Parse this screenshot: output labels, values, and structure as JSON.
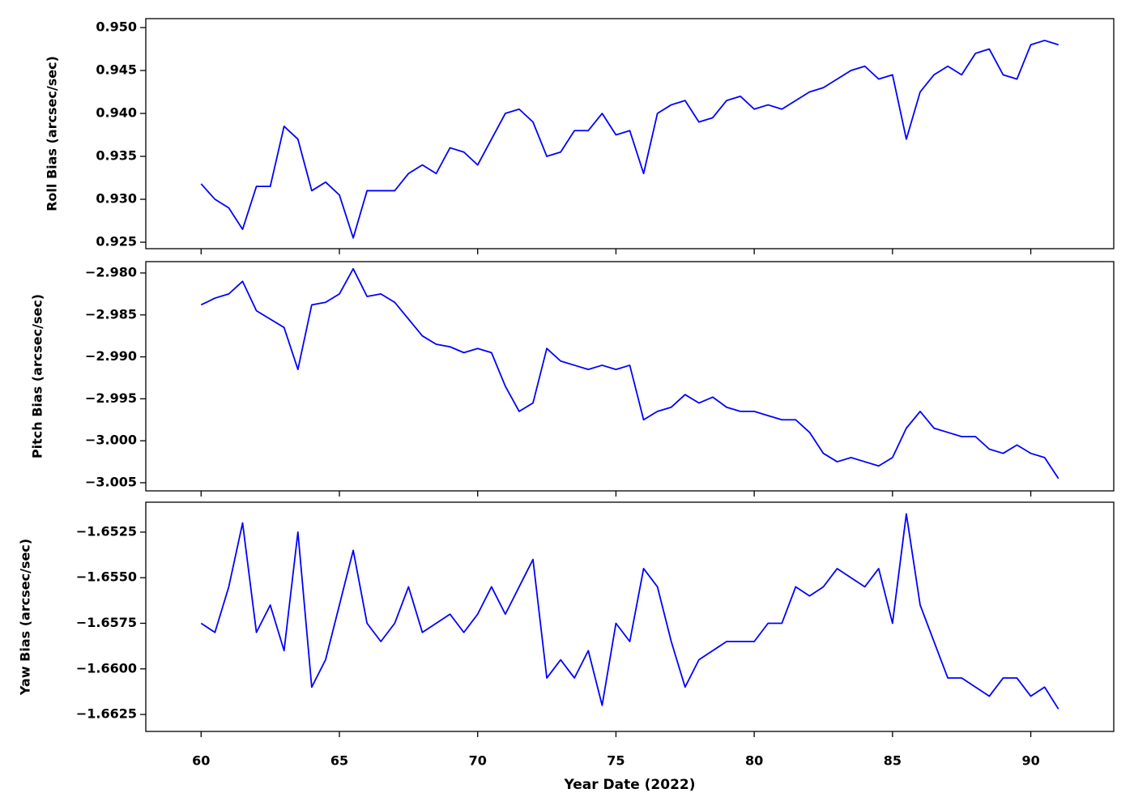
{
  "chart_data": [
    {
      "type": "line",
      "ylabel": "Roll Bias (arcsec/sec)",
      "ylim": [
        0.92425,
        0.95104
      ],
      "yticks": [
        {
          "value": 0.925,
          "label": "0.925"
        },
        {
          "value": 0.93,
          "label": "0.930"
        },
        {
          "value": 0.935,
          "label": "0.935"
        },
        {
          "value": 0.94,
          "label": "0.940"
        },
        {
          "value": 0.945,
          "label": "0.945"
        },
        {
          "value": 0.95,
          "label": "0.950"
        }
      ],
      "series": [
        {
          "color": "#0000ff",
          "values": [
            0.9318,
            0.93,
            0.929,
            0.9265,
            0.9315,
            0.9315,
            0.9385,
            0.937,
            0.931,
            0.932,
            0.9305,
            0.9255,
            0.931,
            0.931,
            0.931,
            0.933,
            0.934,
            0.933,
            0.936,
            0.9355,
            0.934,
            0.937,
            0.94,
            0.9405,
            0.939,
            0.935,
            0.9355,
            0.938,
            0.938,
            0.94,
            0.9375,
            0.938,
            0.933,
            0.94,
            0.941,
            0.9415,
            0.939,
            0.9395,
            0.9415,
            0.942,
            0.9405,
            0.941,
            0.9405,
            0.9415,
            0.9425,
            0.943,
            0.944,
            0.945,
            0.9455,
            0.944,
            0.9445,
            0.937,
            0.9425,
            0.9445,
            0.9455,
            0.9445,
            0.947,
            0.9475,
            0.9445,
            0.944,
            0.948,
            0.9485,
            0.948
          ]
        }
      ]
    },
    {
      "type": "line",
      "ylabel": "Pitch Bias (arcsec/sec)",
      "ylim": [
        -3.00597,
        -2.97865
      ],
      "yticks": [
        {
          "value": -3.005,
          "label": "−3.005"
        },
        {
          "value": -3.0,
          "label": "−3.000"
        },
        {
          "value": -2.995,
          "label": "−2.995"
        },
        {
          "value": -2.99,
          "label": "−2.990"
        },
        {
          "value": -2.985,
          "label": "−2.985"
        },
        {
          "value": -2.98,
          "label": "−2.980"
        }
      ],
      "series": [
        {
          "color": "#0000ff",
          "values": [
            -2.9838,
            -2.983,
            -2.9825,
            -2.981,
            -2.9845,
            -2.9855,
            -2.9865,
            -2.9915,
            -2.9838,
            -2.9835,
            -2.9825,
            -2.9795,
            -2.9828,
            -2.9825,
            -2.9835,
            -2.9855,
            -2.9875,
            -2.9885,
            -2.9888,
            -2.9895,
            -2.989,
            -2.9895,
            -2.9935,
            -2.9965,
            -2.9955,
            -2.989,
            -2.9905,
            -2.991,
            -2.9915,
            -2.991,
            -2.9915,
            -2.991,
            -2.9975,
            -2.9965,
            -2.996,
            -2.9945,
            -2.9955,
            -2.9948,
            -2.996,
            -2.9965,
            -2.9965,
            -2.997,
            -2.9975,
            -2.9975,
            -2.999,
            -3.0015,
            -3.0025,
            -3.002,
            -3.0025,
            -3.003,
            -3.002,
            -2.9985,
            -2.9965,
            -2.9985,
            -2.999,
            -2.9995,
            -2.9995,
            -3.001,
            -3.0015,
            -3.0005,
            -3.0015,
            -3.002,
            -3.0045
          ]
        }
      ]
    },
    {
      "type": "line",
      "ylabel": "Yaw Bias (arcsec/sec)",
      "ylim": [
        -1.66343,
        -1.65086
      ],
      "yticks": [
        {
          "value": -1.6625,
          "label": "−1.6625"
        },
        {
          "value": -1.66,
          "label": "−1.6600"
        },
        {
          "value": -1.6575,
          "label": "−1.6575"
        },
        {
          "value": -1.655,
          "label": "−1.6550"
        },
        {
          "value": -1.6525,
          "label": "−1.6525"
        }
      ],
      "series": [
        {
          "color": "#0000ff",
          "values": [
            -1.6575,
            -1.658,
            -1.6555,
            -1.652,
            -1.658,
            -1.6565,
            -1.659,
            -1.6525,
            -1.661,
            -1.6595,
            -1.6565,
            -1.6535,
            -1.6575,
            -1.6585,
            -1.6575,
            -1.6555,
            -1.658,
            -1.6575,
            -1.657,
            -1.658,
            -1.657,
            -1.6555,
            -1.657,
            -1.6555,
            -1.654,
            -1.6605,
            -1.6595,
            -1.6605,
            -1.659,
            -1.662,
            -1.6575,
            -1.6585,
            -1.6545,
            -1.6555,
            -1.6585,
            -1.661,
            -1.6595,
            -1.659,
            -1.6585,
            -1.6585,
            -1.6585,
            -1.6575,
            -1.6575,
            -1.6555,
            -1.656,
            -1.6555,
            -1.6545,
            -1.655,
            -1.6555,
            -1.6545,
            -1.6575,
            -1.6515,
            -1.6565,
            -1.6585,
            -1.6605,
            -1.6605,
            -1.661,
            -1.6615,
            -1.6605,
            -1.6605,
            -1.6615,
            -1.661,
            -1.6622
          ]
        }
      ],
      "xlabel": "Year Date (2022)",
      "xlim": [
        58.0,
        93.0
      ],
      "xticks": [
        60,
        65,
        70,
        75,
        80,
        85,
        90
      ],
      "x": [
        60,
        60.5,
        61,
        61.5,
        62,
        62.5,
        63,
        63.5,
        64,
        64.5,
        65,
        65.5,
        66,
        66.5,
        67,
        67.5,
        68,
        68.5,
        69,
        69.5,
        70,
        70.5,
        71,
        71.5,
        72,
        72.5,
        73,
        73.5,
        74,
        74.5,
        75,
        75.5,
        76,
        76.5,
        77,
        77.5,
        78,
        78.5,
        79,
        79.5,
        80,
        80.5,
        81,
        81.5,
        82,
        82.5,
        83,
        83.5,
        84,
        84.5,
        85,
        85.5,
        86,
        86.5,
        87,
        87.5,
        88,
        88.5,
        89,
        89.5,
        90,
        90.5,
        91
      ]
    }
  ]
}
